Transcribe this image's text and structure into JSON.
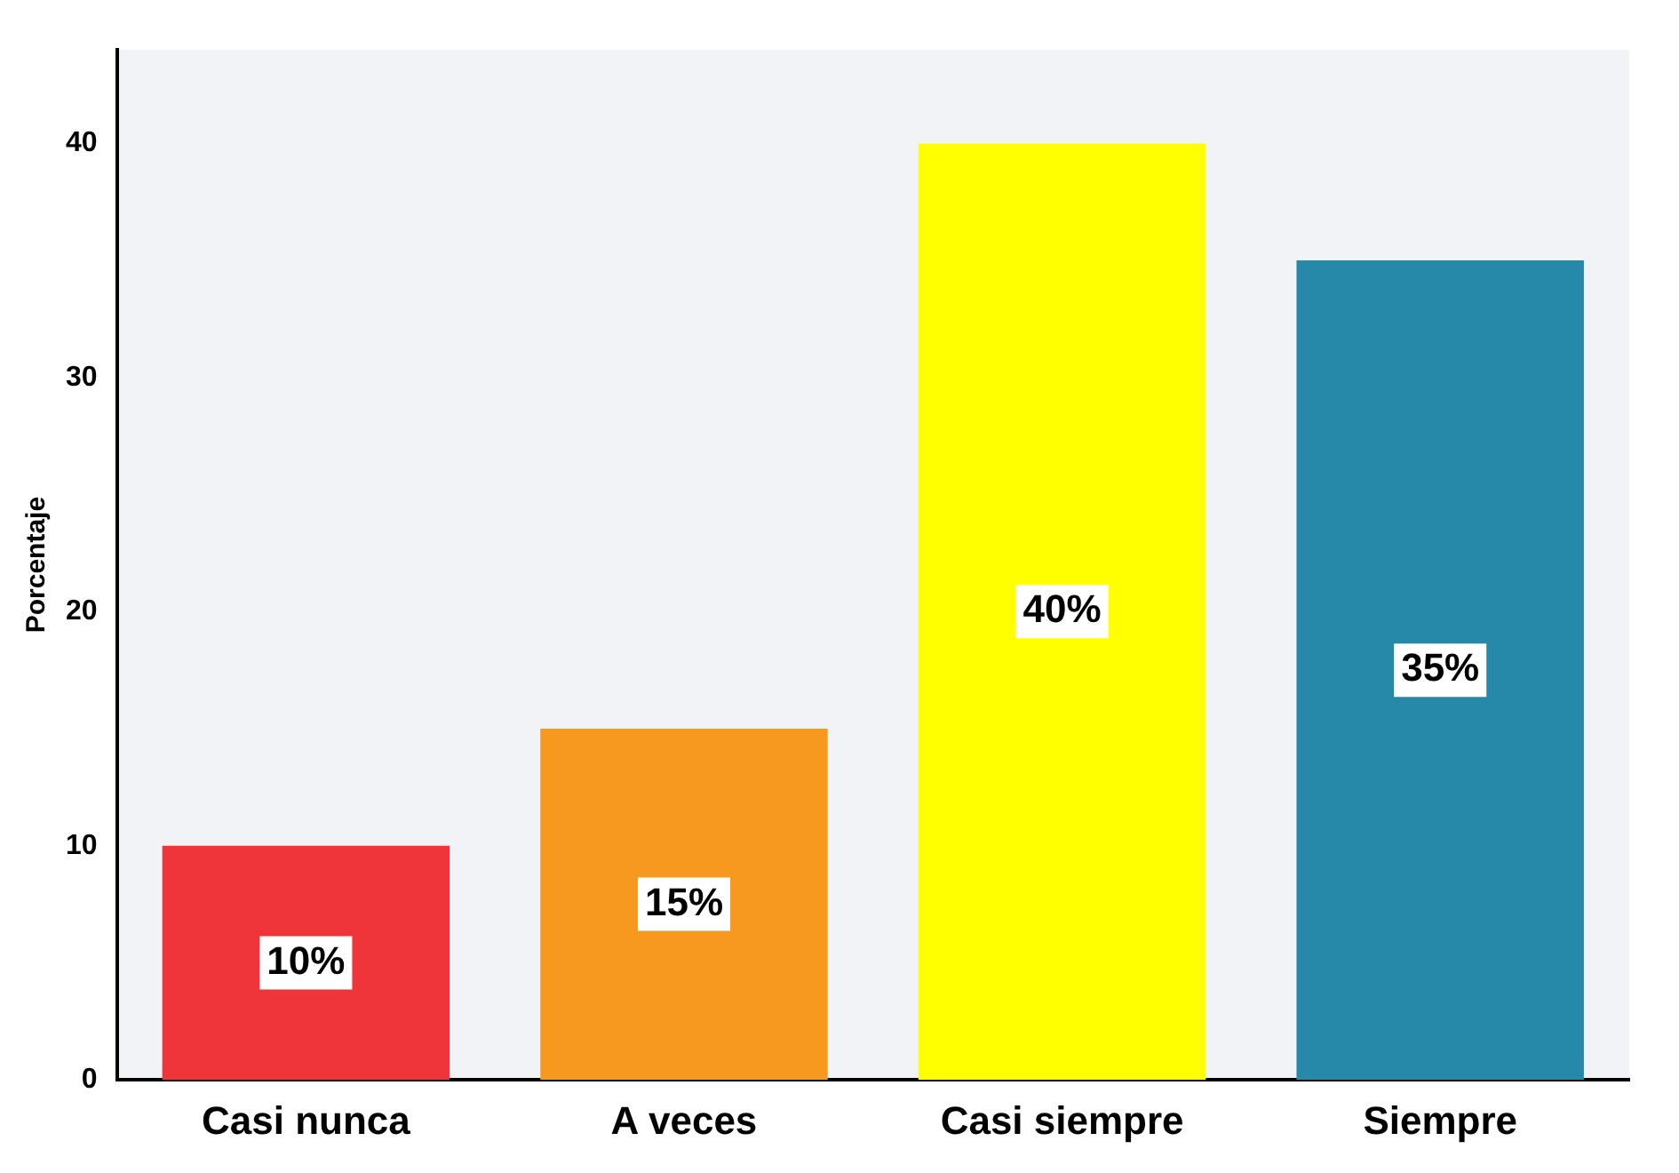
{
  "chart_data": {
    "type": "bar",
    "ylabel": "Porcentaje",
    "categories": [
      "Casi nunca",
      "A veces",
      "Casi siempre",
      "Siempre"
    ],
    "values": [
      10,
      15,
      40,
      35
    ],
    "colors": [
      "#f0353a",
      "#f7991f",
      "#ffff00",
      "#2689aa"
    ],
    "value_labels": [
      "10%",
      "15%",
      "40%",
      "35%"
    ],
    "ylim": [
      0,
      44
    ],
    "yticks": [
      0,
      10,
      20,
      30,
      40
    ],
    "grid": false,
    "legend": false
  }
}
